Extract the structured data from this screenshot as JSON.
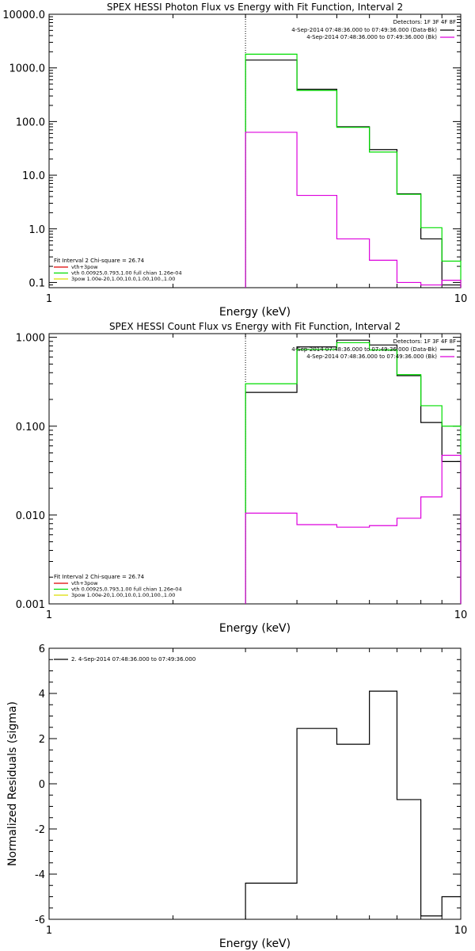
{
  "chart_data": [
    {
      "type": "line",
      "title": "SPEX HESSI Photon Flux vs Energy with Fit Function, Interval 2",
      "xlabel": "Energy (keV)",
      "ylabel": "",
      "x_scale": "log",
      "y_scale": "log",
      "xlim": [
        1,
        10
      ],
      "ylim": [
        0.08,
        10000
      ],
      "x_ticks": [
        1,
        10
      ],
      "x_tick_labels": [
        "1",
        "10"
      ],
      "y_ticks": [
        0.1,
        1,
        10,
        100,
        1000,
        10000
      ],
      "y_tick_labels": [
        "0.1",
        "1.0",
        "10.0",
        "100.0",
        "1000.0",
        "10000.0"
      ],
      "vline": 3.0,
      "bin_edges": [
        3.0,
        4.0,
        5.0,
        6.0,
        7.0,
        8.0,
        9.0,
        10.0
      ],
      "series": [
        {
          "name": "4-Sep-2014 07:48:36.000 to 07:49:36.000 (Data-Bk)",
          "color": "#000000",
          "values": [
            1400,
            400,
            80,
            30,
            4.5,
            0.65,
            0.09
          ]
        },
        {
          "name": "vth",
          "color": "#00dd00",
          "values": [
            1800,
            380,
            78,
            27,
            4.4,
            1.05,
            0.25
          ]
        },
        {
          "name": "4-Sep-2014 07:48:36.000 to 07:49:36.000 (Bk)",
          "color": "#dd00dd",
          "values": [
            63,
            4.2,
            0.65,
            0.26,
            0.1,
            0.09,
            0.11
          ]
        }
      ],
      "legend_right_header": "Detectors: 1F 3F 4F 8F",
      "legend_right": [
        {
          "label": "4-Sep-2014 07:48:36.000 to 07:49:36.000 (Data-Bk)",
          "color": "#000000"
        },
        {
          "label": "4-Sep-2014 07:48:36.000 to 07:49:36.000 (Bk)",
          "color": "#dd00dd"
        }
      ],
      "legend_left_header": "Fit Interval 2   Chi-square = 26.74",
      "legend_left": [
        {
          "label": "vth+3pow",
          "color": "#dd0000"
        },
        {
          "label": "vth 0.00925,0.793,1.00  full chian 1.26e-04",
          "color": "#00dd00"
        },
        {
          "label": "3pow 1.00e-20,1.00,10.0,1.00,100.,1.00",
          "color": "#dddd00"
        }
      ]
    },
    {
      "type": "line",
      "title": "SPEX HESSI Count Flux vs Energy with Fit Function, Interval 2",
      "xlabel": "Energy (keV)",
      "ylabel": "",
      "x_scale": "log",
      "y_scale": "log",
      "xlim": [
        1,
        10
      ],
      "ylim": [
        0.001,
        1.1
      ],
      "x_ticks": [
        1,
        10
      ],
      "x_tick_labels": [
        "1",
        "10"
      ],
      "y_ticks": [
        0.001,
        0.01,
        0.1,
        1
      ],
      "y_tick_labels": [
        "0.001",
        "0.010",
        "0.100",
        "1.000"
      ],
      "vline": 3.0,
      "bin_edges": [
        3.0,
        4.0,
        5.0,
        6.0,
        7.0,
        8.0,
        9.0,
        10.0
      ],
      "series": [
        {
          "name": "4-Sep-2014 07:48:36.000 to 07:49:36.000 (Data-Bk)",
          "color": "#000000",
          "values": [
            0.24,
            0.78,
            0.93,
            0.82,
            0.37,
            0.11,
            0.04
          ]
        },
        {
          "name": "vth",
          "color": "#00dd00",
          "values": [
            0.3,
            0.73,
            0.87,
            0.72,
            0.38,
            0.17,
            0.1
          ]
        },
        {
          "name": "4-Sep-2014 07:48:36.000 to 07:49:36.000 (Bk)",
          "color": "#dd00dd",
          "values": [
            0.0105,
            0.0078,
            0.0073,
            0.0076,
            0.0092,
            0.016,
            0.047
          ]
        }
      ],
      "legend_right_header": "Detectors: 1F 3F 4F 8F",
      "legend_right": [
        {
          "label": "4-Sep-2014 07:48:36.000 to 07:49:36.000 (Data-Bk)",
          "color": "#000000"
        },
        {
          "label": "4-Sep-2014 07:48:36.000 to 07:49:36.000 (Bk)",
          "color": "#dd00dd"
        }
      ],
      "legend_left_header": "Fit Interval 2   Chi-square = 26.74",
      "legend_left": [
        {
          "label": "vth+3pow",
          "color": "#dd0000"
        },
        {
          "label": "vth 0.00925,0.793,1.00  full chian 1.26e-04",
          "color": "#00dd00"
        },
        {
          "label": "3pow 1.00e-20,1.00,10.0,1.00,100.,1.00",
          "color": "#dddd00"
        }
      ]
    },
    {
      "type": "line",
      "title": "",
      "xlabel": "Energy (keV)",
      "ylabel": "Normalized Residuals (sigma)",
      "x_scale": "log",
      "y_scale": "linear",
      "xlim": [
        1,
        10
      ],
      "ylim": [
        -6,
        6
      ],
      "x_ticks": [
        1,
        10
      ],
      "x_tick_labels": [
        "1",
        "10"
      ],
      "y_ticks": [
        -6,
        -4,
        -2,
        0,
        2,
        4,
        6
      ],
      "y_tick_labels": [
        "-6",
        "-4",
        "-2",
        "0",
        "2",
        "4",
        "6"
      ],
      "bin_edges": [
        3.0,
        4.0,
        5.0,
        6.0,
        7.0,
        8.0,
        9.0,
        10.0
      ],
      "series": [
        {
          "name": "2. 4-Sep-2014 07:48:36.000 to 07:49:36.000",
          "color": "#000000",
          "values": [
            -4.4,
            2.45,
            1.75,
            4.1,
            -0.7,
            -5.85,
            -5.0
          ]
        }
      ],
      "legend_left_header": "",
      "legend_left": [
        {
          "label": "2. 4-Sep-2014 07:48:36.000 to 07:49:36.000",
          "color": "#000000"
        }
      ]
    }
  ]
}
